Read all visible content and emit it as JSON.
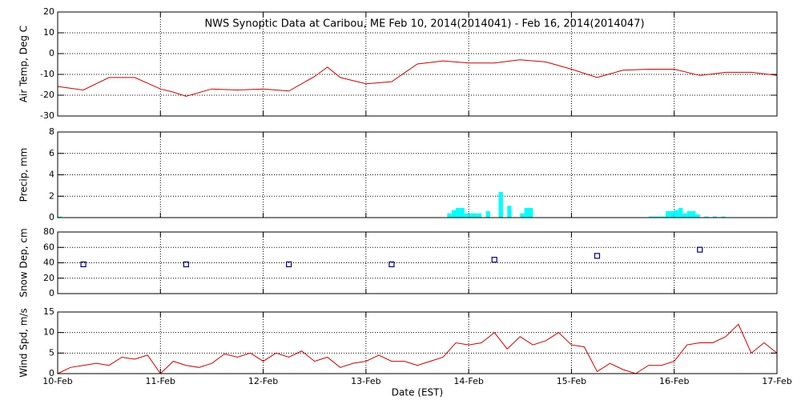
{
  "chart_data": [
    {
      "type": "line",
      "title": "NWS Synoptic Data at Caribou, ME   Feb 10, 2014(2014041) - Feb 16, 2014(2014047)",
      "ylabel": "Air Temp, Deg C",
      "color": "#cc0000",
      "grid": true,
      "xlim": [
        0,
        168
      ],
      "xticks": [
        0,
        24,
        48,
        72,
        96,
        120,
        144,
        168
      ],
      "ylim": [
        -30,
        20
      ],
      "yticks": [
        -30,
        -20,
        -10,
        0,
        10,
        20
      ],
      "x": [
        0,
        6,
        12,
        18,
        24,
        27,
        30,
        36,
        42,
        48,
        54,
        60,
        63,
        66,
        72,
        78,
        84,
        90,
        96,
        102,
        108,
        114,
        120,
        126,
        132,
        138,
        144,
        150,
        156,
        162,
        168
      ],
      "values": [
        -15.8,
        -17.5,
        -11.5,
        -11.5,
        -17.0,
        -18.5,
        -20.5,
        -17.0,
        -17.5,
        -17.0,
        -18.0,
        -11.0,
        -6.5,
        -11.5,
        -14.5,
        -13.5,
        -5.0,
        -3.5,
        -4.5,
        -4.5,
        -3.0,
        -4.0,
        -7.5,
        -11.5,
        -8.0,
        -7.5,
        -7.5,
        -10.5,
        -9.0,
        -9.0,
        -10.5
      ]
    },
    {
      "type": "bar",
      "ylabel": "Precip, mm",
      "color": "#00ffff",
      "grid": true,
      "xlim": [
        0,
        168
      ],
      "xticks": [
        0,
        24,
        48,
        72,
        96,
        120,
        144,
        168
      ],
      "ylim": [
        0,
        8
      ],
      "yticks": [
        0,
        2,
        4,
        6,
        8
      ],
      "x": [
        0,
        91,
        92,
        93,
        94,
        95,
        96,
        97,
        98,
        100,
        103,
        105,
        108,
        109,
        110,
        138,
        139,
        140,
        141,
        142,
        143,
        144,
        145,
        146,
        147,
        148,
        149,
        151,
        153,
        155
      ],
      "values": [
        0.1,
        0.4,
        0.7,
        0.9,
        0.9,
        0.4,
        0.4,
        0.4,
        0.4,
        0.6,
        2.4,
        1.1,
        0.4,
        0.9,
        0.9,
        0.1,
        0.1,
        0.1,
        0.1,
        0.6,
        0.6,
        0.7,
        0.9,
        0.4,
        0.6,
        0.6,
        0.3,
        0.1,
        0.1,
        0.1
      ]
    },
    {
      "type": "scatter",
      "ylabel": "Snow Dep, cm",
      "color": "#000080",
      "grid": true,
      "xlim": [
        0,
        168
      ],
      "xticks": [
        0,
        24,
        48,
        72,
        96,
        120,
        144,
        168
      ],
      "ylim": [
        0,
        80
      ],
      "yticks": [
        0,
        20,
        40,
        60,
        80
      ],
      "x": [
        6,
        30,
        54,
        78,
        102,
        126,
        150
      ],
      "values": [
        38,
        38,
        38,
        38,
        44,
        49,
        57
      ]
    },
    {
      "type": "line",
      "ylabel": "Wind Spd, m/s",
      "xlabel": "Date (EST)",
      "color": "#cc0000",
      "grid": true,
      "xlim": [
        0,
        168
      ],
      "xticks": [
        {
          "value": 0,
          "label": "10-Feb"
        },
        {
          "value": 24,
          "label": "11-Feb"
        },
        {
          "value": 48,
          "label": "12-Feb"
        },
        {
          "value": 72,
          "label": "13-Feb"
        },
        {
          "value": 96,
          "label": "14-Feb"
        },
        {
          "value": 120,
          "label": "15-Feb"
        },
        {
          "value": 144,
          "label": "16-Feb"
        },
        {
          "value": 168,
          "label": "17-Feb"
        }
      ],
      "ylim": [
        0,
        15
      ],
      "yticks": [
        0,
        5,
        10,
        15
      ],
      "x": [
        0,
        3,
        6,
        9,
        12,
        15,
        18,
        21,
        24,
        27,
        30,
        33,
        36,
        39,
        42,
        45,
        48,
        51,
        54,
        57,
        60,
        63,
        66,
        69,
        72,
        75,
        78,
        81,
        84,
        87,
        90,
        93,
        96,
        99,
        102,
        105,
        108,
        111,
        114,
        117,
        120,
        123,
        126,
        129,
        132,
        135,
        138,
        141,
        144,
        147,
        150,
        153,
        156,
        159,
        162,
        165,
        168
      ],
      "values": [
        0,
        1.5,
        2,
        2.5,
        2,
        4,
        3.5,
        4.5,
        0,
        3,
        2,
        1.5,
        2.5,
        4.8,
        4,
        5,
        3,
        5,
        4,
        5.5,
        3,
        4,
        1.5,
        2.5,
        3,
        4.5,
        3,
        3,
        2,
        3,
        4,
        7.5,
        7,
        7.5,
        10,
        6,
        9,
        7,
        8,
        10,
        7,
        6.5,
        0.5,
        2.5,
        1,
        0,
        2,
        2,
        3,
        7,
        7.5,
        7.5,
        9,
        12,
        5,
        7.5,
        5
      ]
    }
  ]
}
